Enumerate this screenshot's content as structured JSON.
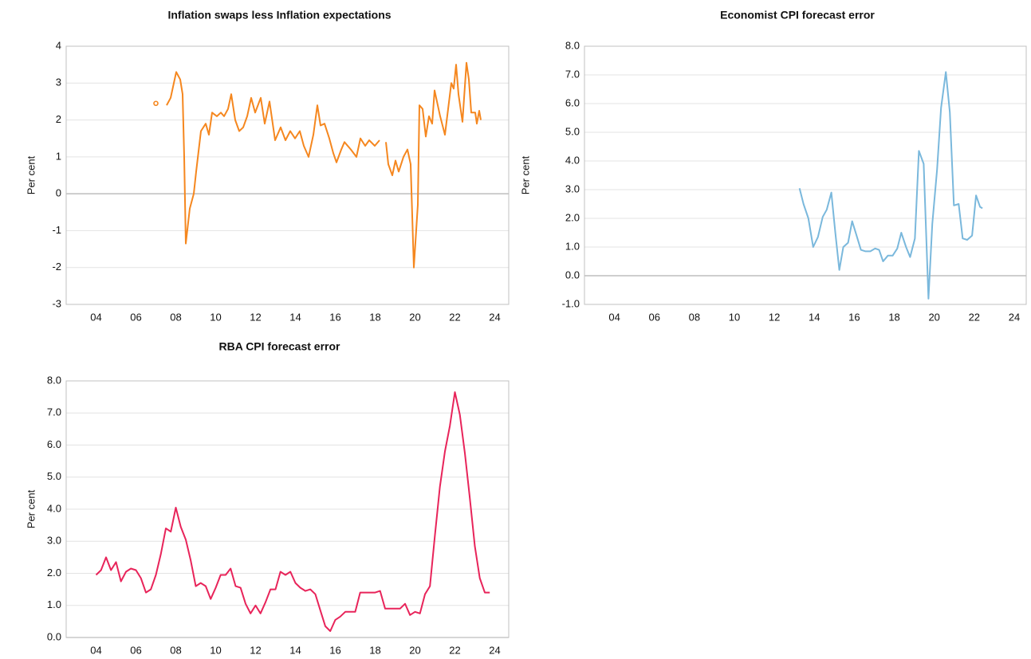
{
  "chart_data": [
    {
      "type": "line",
      "title": "Inflation swaps less Inflation expectations",
      "ylabel": "Per cent",
      "color": "#f5871f",
      "x": [
        2007.0,
        2007.3,
        2007.54,
        2007.74,
        2007.94,
        2008.02,
        2008.22,
        2008.34,
        2008.42,
        2008.5,
        2008.7,
        2008.9,
        2009.02,
        2009.26,
        2009.5,
        2009.66,
        2009.82,
        2010.06,
        2010.26,
        2010.42,
        2010.62,
        2010.78,
        2010.98,
        2011.18,
        2011.38,
        2011.58,
        2011.78,
        2011.98,
        2012.26,
        2012.46,
        2012.7,
        2012.98,
        2013.26,
        2013.5,
        2013.74,
        2013.98,
        2014.22,
        2014.42,
        2014.66,
        2014.9,
        2015.1,
        2015.26,
        2015.46,
        2015.7,
        2015.9,
        2016.06,
        2016.3,
        2016.46,
        2016.78,
        2017.06,
        2017.26,
        2017.5,
        2017.7,
        2017.98,
        2018.22,
        2018.36,
        2018.54,
        2018.66,
        2018.86,
        2019.02,
        2019.18,
        2019.42,
        2019.62,
        2019.78,
        2019.94,
        2020.14,
        2020.22,
        2020.38,
        2020.54,
        2020.7,
        2020.86,
        2020.98,
        2021.26,
        2021.5,
        2021.66,
        2021.82,
        2021.94,
        2022.06,
        2022.18,
        2022.38,
        2022.58,
        2022.7,
        2022.82,
        2023.02,
        2023.1,
        2023.22,
        2023.3
      ],
      "values": [
        2.45,
        null,
        2.4,
        2.6,
        3.1,
        3.3,
        3.1,
        2.7,
        1.0,
        -1.35,
        -0.4,
        0,
        0.6,
        1.7,
        1.9,
        1.6,
        2.2,
        2.1,
        2.2,
        2.1,
        2.3,
        2.7,
        2.0,
        1.7,
        1.8,
        2.1,
        2.6,
        2.2,
        2.6,
        1.9,
        2.5,
        1.45,
        1.8,
        1.45,
        1.7,
        1.5,
        1.7,
        1.3,
        1.0,
        1.6,
        2.4,
        1.85,
        1.9,
        1.5,
        1.1,
        0.85,
        1.2,
        1.4,
        1.2,
        1.0,
        1.5,
        1.3,
        1.45,
        1.3,
        1.45,
        null,
        1.4,
        0.8,
        0.5,
        0.9,
        0.6,
        1.0,
        1.2,
        0.8,
        -2.0,
        -0.3,
        2.4,
        2.3,
        1.55,
        2.1,
        1.9,
        2.8,
        2.1,
        1.6,
        2.3,
        3.0,
        2.85,
        3.5,
        2.7,
        1.95,
        3.55,
        3.1,
        2.2,
        2.2,
        1.9,
        2.25,
        2.0
      ],
      "xlim": [
        2002.5,
        2024.7
      ],
      "ylim": [
        -3,
        4
      ],
      "xticks": [
        {
          "value": 2004,
          "label": "04"
        },
        {
          "value": 2006,
          "label": "06"
        },
        {
          "value": 2008,
          "label": "08"
        },
        {
          "value": 2010,
          "label": "10"
        },
        {
          "value": 2012,
          "label": "12"
        },
        {
          "value": 2014,
          "label": "14"
        },
        {
          "value": 2016,
          "label": "16"
        },
        {
          "value": 2018,
          "label": "18"
        },
        {
          "value": 2020,
          "label": "20"
        },
        {
          "value": 2022,
          "label": "22"
        },
        {
          "value": 2024,
          "label": "24"
        }
      ],
      "yticks": [
        -3,
        -2,
        -1,
        0,
        1,
        2,
        3,
        4
      ],
      "grid": true
    },
    {
      "type": "line",
      "title": "Economist CPI forecast error",
      "ylabel": "Per cent",
      "color": "#7ab8dc",
      "x": [
        2013.26,
        2013.46,
        2013.7,
        2013.94,
        2014.18,
        2014.42,
        2014.62,
        2014.85,
        2015.05,
        2015.25,
        2015.45,
        2015.69,
        2015.89,
        2016.09,
        2016.33,
        2016.56,
        2016.8,
        2017.04,
        2017.24,
        2017.44,
        2017.68,
        2017.92,
        2018.15,
        2018.35,
        2018.59,
        2018.79,
        2019.03,
        2019.23,
        2019.47,
        2019.71,
        2019.9,
        2020.14,
        2020.34,
        2020.58,
        2020.78,
        2020.98,
        2021.22,
        2021.42,
        2021.65,
        2021.89,
        2022.09,
        2022.29,
        2022.41
      ],
      "values": [
        3.05,
        2.5,
        2.0,
        1.0,
        1.35,
        2.05,
        2.3,
        2.9,
        1.5,
        0.2,
        1.0,
        1.15,
        1.9,
        1.45,
        0.9,
        0.85,
        0.85,
        0.95,
        0.9,
        0.5,
        0.7,
        0.7,
        0.95,
        1.5,
        1.0,
        0.65,
        1.3,
        4.35,
        3.9,
        -0.8,
        1.8,
        3.7,
        5.85,
        7.1,
        5.7,
        2.45,
        2.5,
        1.3,
        1.25,
        1.4,
        2.8,
        2.4,
        2.35
      ],
      "xlim": [
        2002.5,
        2024.6
      ],
      "ylim": [
        -1,
        8
      ],
      "xticks": [
        {
          "value": 2004,
          "label": "04"
        },
        {
          "value": 2006,
          "label": "06"
        },
        {
          "value": 2008,
          "label": "08"
        },
        {
          "value": 2010,
          "label": "10"
        },
        {
          "value": 2012,
          "label": "12"
        },
        {
          "value": 2014,
          "label": "14"
        },
        {
          "value": 2016,
          "label": "16"
        },
        {
          "value": 2018,
          "label": "18"
        },
        {
          "value": 2020,
          "label": "20"
        },
        {
          "value": 2022,
          "label": "22"
        },
        {
          "value": 2024,
          "label": "24"
        }
      ],
      "yticks": [
        {
          "value": -1,
          "label": "-1.0"
        },
        {
          "value": 0,
          "label": "0.0"
        },
        {
          "value": 1,
          "label": "1.0"
        },
        {
          "value": 2,
          "label": "2.0"
        },
        {
          "value": 3,
          "label": "3.0"
        },
        {
          "value": 4,
          "label": "4.0"
        },
        {
          "value": 5,
          "label": "5.0"
        },
        {
          "value": 6,
          "label": "6.0"
        },
        {
          "value": 7,
          "label": "7.0"
        },
        {
          "value": 8,
          "label": "8.0"
        }
      ],
      "grid": true
    },
    {
      "type": "line",
      "title": "RBA CPI forecast error",
      "ylabel": "Per cent",
      "color": "#e8245a",
      "x": [
        2004.0,
        2004.25,
        2004.5,
        2004.75,
        2005.0,
        2005.25,
        2005.5,
        2005.75,
        2006.0,
        2006.25,
        2006.5,
        2006.75,
        2007.0,
        2007.25,
        2007.5,
        2007.75,
        2008.0,
        2008.25,
        2008.5,
        2008.75,
        2009.0,
        2009.25,
        2009.5,
        2009.75,
        2010.0,
        2010.25,
        2010.5,
        2010.75,
        2011.0,
        2011.25,
        2011.5,
        2011.75,
        2012.0,
        2012.25,
        2012.5,
        2012.75,
        2013.0,
        2013.25,
        2013.5,
        2013.75,
        2014.0,
        2014.25,
        2014.5,
        2014.75,
        2015.0,
        2015.25,
        2015.5,
        2015.75,
        2016.0,
        2016.25,
        2016.5,
        2016.75,
        2017.0,
        2017.25,
        2017.5,
        2017.75,
        2018.0,
        2018.25,
        2018.5,
        2018.75,
        2019.0,
        2019.25,
        2019.5,
        2019.75,
        2020.0,
        2020.25,
        2020.5,
        2020.75,
        2021.0,
        2021.25,
        2021.5,
        2021.75,
        2022.0,
        2022.25,
        2022.5,
        2022.75,
        2023.0,
        2023.25,
        2023.5,
        2023.75
      ],
      "values": [
        1.95,
        2.1,
        2.5,
        2.1,
        2.35,
        1.75,
        2.05,
        2.15,
        2.1,
        1.85,
        1.4,
        1.5,
        1.95,
        2.6,
        3.4,
        3.3,
        4.05,
        3.45,
        3.05,
        2.4,
        1.6,
        1.7,
        1.6,
        1.2,
        1.55,
        1.95,
        1.95,
        2.15,
        1.6,
        1.55,
        1.05,
        0.75,
        1.0,
        0.75,
        1.1,
        1.5,
        1.5,
        2.05,
        1.95,
        2.05,
        1.7,
        1.55,
        1.45,
        1.5,
        1.35,
        0.85,
        0.35,
        0.2,
        0.55,
        0.65,
        0.8,
        0.8,
        0.8,
        1.4,
        1.4,
        1.4,
        1.4,
        1.45,
        0.9,
        0.9,
        0.9,
        0.9,
        1.05,
        0.7,
        0.8,
        0.75,
        1.35,
        1.6,
        3.2,
        4.7,
        5.8,
        6.6,
        7.65,
        6.95,
        5.75,
        4.35,
        2.85,
        1.85,
        1.4,
        1.4
      ],
      "xlim": [
        2002.5,
        2024.7
      ],
      "ylim": [
        0,
        8
      ],
      "xticks": [
        {
          "value": 2004,
          "label": "04"
        },
        {
          "value": 2006,
          "label": "06"
        },
        {
          "value": 2008,
          "label": "08"
        },
        {
          "value": 2010,
          "label": "10"
        },
        {
          "value": 2012,
          "label": "12"
        },
        {
          "value": 2014,
          "label": "14"
        },
        {
          "value": 2016,
          "label": "16"
        },
        {
          "value": 2018,
          "label": "18"
        },
        {
          "value": 2020,
          "label": "20"
        },
        {
          "value": 2022,
          "label": "22"
        },
        {
          "value": 2024,
          "label": "24"
        }
      ],
      "yticks": [
        {
          "value": 0,
          "label": "0.0"
        },
        {
          "value": 1,
          "label": "1.0"
        },
        {
          "value": 2,
          "label": "2.0"
        },
        {
          "value": 3,
          "label": "3.0"
        },
        {
          "value": 4,
          "label": "4.0"
        },
        {
          "value": 5,
          "label": "5.0"
        },
        {
          "value": 6,
          "label": "6.0"
        },
        {
          "value": 7,
          "label": "7.0"
        },
        {
          "value": 8,
          "label": "8.0"
        }
      ],
      "grid": true
    }
  ]
}
